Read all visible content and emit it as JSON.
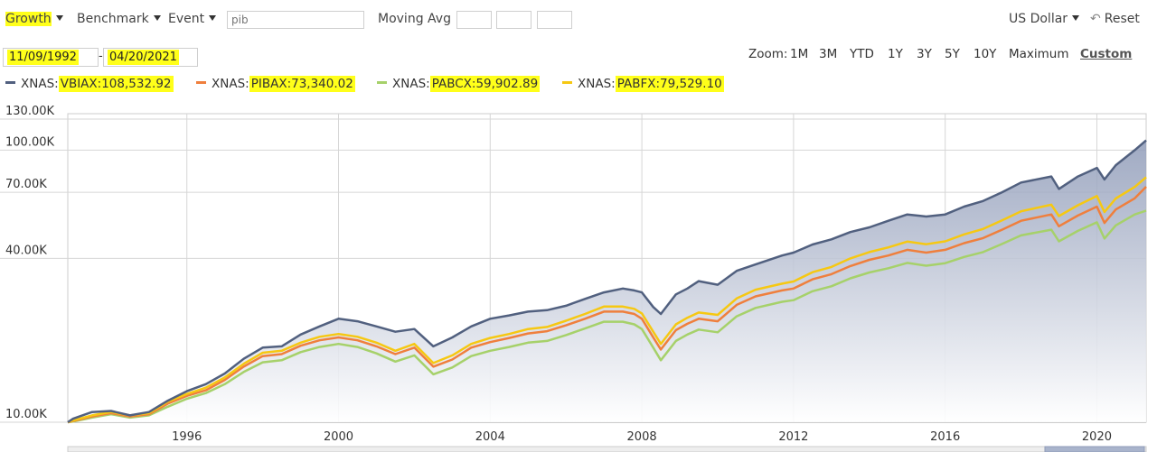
{
  "toolbar": {
    "growth": "Growth",
    "benchmark": "Benchmark",
    "event": "Event",
    "search_placeholder": "pib",
    "moving_avg": "Moving Avg",
    "currency": "US Dollar",
    "reset": "Reset"
  },
  "dates": {
    "start": "11/09/1992",
    "sep": "-",
    "end": "04/20/2021"
  },
  "zoom": {
    "label": "Zoom:",
    "options": [
      "1M",
      "3M",
      "YTD",
      "1Y",
      "3Y",
      "5Y",
      "10Y",
      "Maximum",
      "Custom"
    ]
  },
  "legend": [
    {
      "prefix": "XNAS:",
      "value": "VBIAX:108,532.92",
      "color": "#51607f"
    },
    {
      "prefix": "XNAS:",
      "value": "PIBAX:73,340.02",
      "color": "#ef7f3d"
    },
    {
      "prefix": "XNAS:",
      "value": "PABCX:59,902.89",
      "color": "#a6d16a"
    },
    {
      "prefix": "XNAS:",
      "value": "PABFX:79,529.10",
      "color": "#f6c812"
    }
  ],
  "chart_data": {
    "type": "line",
    "y_scale": "log",
    "ylim": [
      10000,
      130000
    ],
    "y_ticks": [
      {
        "value": 10000,
        "label": "10.00K"
      },
      {
        "value": 40000,
        "label": "40.00K"
      },
      {
        "value": 70000,
        "label": "70.00K"
      },
      {
        "value": 100000,
        "label": "100.00K"
      },
      {
        "value": 130000,
        "label": "130.00K"
      }
    ],
    "xlim": [
      1992.86,
      2021.3
    ],
    "x_ticks": [
      1996,
      2000,
      2004,
      2008,
      2012,
      2016,
      2020
    ],
    "x": [
      1992.86,
      1993.0,
      1993.5,
      1994.0,
      1994.5,
      1995.0,
      1995.5,
      1996.0,
      1996.5,
      1997.0,
      1997.5,
      1998.0,
      1998.5,
      1999.0,
      1999.5,
      2000.0,
      2000.5,
      2001.0,
      2001.5,
      2002.0,
      2002.5,
      2003.0,
      2003.5,
      2004.0,
      2004.5,
      2005.0,
      2005.5,
      2006.0,
      2006.5,
      2007.0,
      2007.5,
      2007.8,
      2008.0,
      2008.3,
      2008.5,
      2008.9,
      2009.2,
      2009.5,
      2010.0,
      2010.5,
      2011.0,
      2011.7,
      2012.0,
      2012.5,
      2013.0,
      2013.5,
      2014.0,
      2014.5,
      2015.0,
      2015.5,
      2016.0,
      2016.5,
      2017.0,
      2017.5,
      2018.0,
      2018.8,
      2019.0,
      2019.5,
      2020.0,
      2020.2,
      2020.5,
      2021.0,
      2021.3
    ],
    "series": [
      {
        "name": "XNAS:VBIAX",
        "color": "#51607f",
        "values": [
          10000,
          10300,
          10900,
          11000,
          10600,
          10900,
          12000,
          13000,
          13800,
          15100,
          17100,
          18800,
          19000,
          21000,
          22500,
          24000,
          23500,
          22500,
          21500,
          22000,
          19000,
          20500,
          22500,
          24000,
          24700,
          25500,
          25800,
          26800,
          28400,
          30000,
          31000,
          30500,
          30000,
          26500,
          25000,
          29500,
          31000,
          33000,
          32000,
          36000,
          38000,
          41000,
          42000,
          45000,
          47000,
          50000,
          52000,
          55000,
          58000,
          57000,
          58000,
          62000,
          65000,
          70000,
          76000,
          80000,
          72000,
          80000,
          86000,
          78000,
          88000,
          100000,
          108533
        ]
      },
      {
        "name": "XNAS:PIBAX",
        "color": "#ef7f3d",
        "values": [
          10000,
          10100,
          10500,
          10800,
          10500,
          10700,
          11700,
          12500,
          13100,
          14300,
          16000,
          17500,
          17800,
          19100,
          20000,
          20500,
          20000,
          19000,
          17800,
          18800,
          16000,
          17000,
          18800,
          19700,
          20400,
          21200,
          21600,
          22700,
          24000,
          25500,
          25500,
          25000,
          24000,
          20500,
          18500,
          21800,
          23000,
          24000,
          23500,
          27000,
          29000,
          30500,
          31000,
          33500,
          35000,
          37500,
          39500,
          41000,
          43000,
          42000,
          43000,
          45500,
          47500,
          51000,
          55000,
          58000,
          52500,
          57500,
          62000,
          54000,
          60500,
          66500,
          73340
        ]
      },
      {
        "name": "XNAS:PABCX",
        "color": "#a6d16a",
        "values": [
          10000,
          10050,
          10400,
          10700,
          10400,
          10600,
          11400,
          12200,
          12800,
          13800,
          15300,
          16600,
          16900,
          18100,
          18900,
          19400,
          18900,
          17900,
          16700,
          17600,
          15000,
          15900,
          17500,
          18300,
          18900,
          19600,
          19900,
          20900,
          22100,
          23400,
          23400,
          22900,
          22000,
          18800,
          16900,
          19900,
          21000,
          21900,
          21400,
          24500,
          26300,
          27700,
          28100,
          30300,
          31600,
          33800,
          35500,
          36800,
          38500,
          37600,
          38400,
          40500,
          42200,
          45200,
          48600,
          51000,
          46200,
          50500,
          54300,
          47300,
          52900,
          58000,
          59903
        ]
      },
      {
        "name": "XNAS:PABFX",
        "color": "#f6c812",
        "values": [
          10000,
          10150,
          10600,
          10900,
          10600,
          10800,
          11900,
          12700,
          13400,
          14600,
          16400,
          18000,
          18300,
          19600,
          20600,
          21100,
          20600,
          19600,
          18300,
          19400,
          16500,
          17600,
          19400,
          20400,
          21100,
          22000,
          22400,
          23600,
          25000,
          26600,
          26600,
          26100,
          25100,
          21500,
          19400,
          22900,
          24200,
          25300,
          24800,
          28500,
          30700,
          32300,
          32900,
          35600,
          37200,
          40000,
          42200,
          43900,
          46100,
          45100,
          46200,
          49000,
          51300,
          55200,
          59600,
          63000,
          57200,
          62700,
          67800,
          59200,
          66400,
          73200,
          79529
        ]
      }
    ]
  }
}
